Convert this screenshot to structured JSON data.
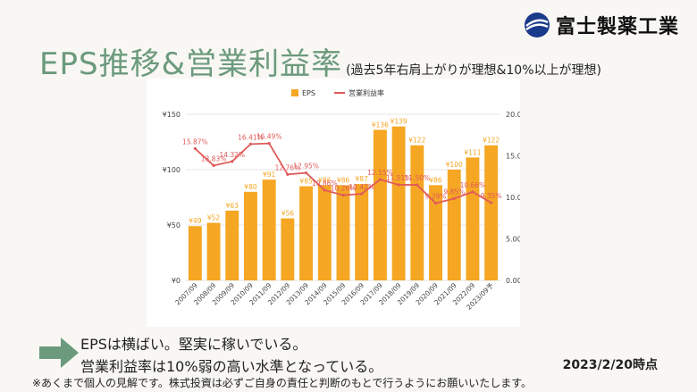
{
  "header": {
    "logo_text": "富士製薬工業",
    "title": "EPS推移&営業利益率",
    "subtitle": "(過去5年右肩上がりが理想&10%以上が理想)"
  },
  "colors": {
    "bar": "#f5a623",
    "line": "#e05a5a",
    "title": "#6b9a7c",
    "arrow": "#6b9a7c"
  },
  "chart_data": {
    "type": "bar",
    "legend_position": "top-center",
    "grid": true,
    "categories": [
      "2007/09",
      "2008/09",
      "2009/09",
      "2010/09",
      "2011/09",
      "2012/09",
      "2013/09",
      "2014/09",
      "2015/09",
      "2016/09",
      "2017/09",
      "2018/09",
      "2019/09",
      "2020/09",
      "2021/09",
      "2022/09",
      "2023/09予"
    ],
    "y_left": {
      "range": [
        0,
        150
      ],
      "ticks": [
        "¥0",
        "¥50",
        "¥100",
        "¥150"
      ],
      "tick_values": [
        0,
        50,
        100,
        150
      ]
    },
    "y_right": {
      "range": [
        0,
        20
      ],
      "ticks": [
        "0.00%",
        "5.00%",
        "10.00%",
        "15.00%",
        "20.00%"
      ],
      "tick_values": [
        0,
        5,
        10,
        15,
        20
      ]
    },
    "series": [
      {
        "name": "EPS",
        "kind": "bar",
        "axis": "left",
        "values": [
          49,
          52,
          63,
          80,
          91,
          56,
          85,
          86,
          86,
          87,
          136,
          139,
          122,
          86,
          100,
          111,
          122
        ],
        "labels": [
          "¥49",
          "¥52",
          "¥63",
          "¥80",
          "¥91",
          "¥56",
          "¥85",
          "¥86",
          "¥86",
          "¥87",
          "¥136",
          "¥139",
          "¥122",
          "¥86",
          "¥100",
          "¥111",
          "¥122"
        ]
      },
      {
        "name": "営業利益率",
        "kind": "line",
        "axis": "right",
        "values": [
          15.87,
          13.83,
          14.32,
          16.41,
          16.49,
          12.76,
          12.95,
          10.86,
          10.26,
          10.42,
          12.15,
          11.51,
          11.5,
          9.29,
          9.85,
          10.66,
          9.35
        ],
        "labels": [
          "15.87%",
          "13.83%",
          "14.32%",
          "16.41%",
          "16.49%",
          "12.76%",
          "12.95%",
          "10.86%",
          "10.26%",
          "10.42%",
          "12.15%",
          "11.51%",
          "11.50%",
          "9.29%",
          "9.85%",
          "10.66%",
          "9.35%"
        ]
      }
    ]
  },
  "notes": {
    "line1": "EPSは横ばい。堅実に稼いでいる。",
    "line2": "営業利益率は10%弱の高い水準となっている。"
  },
  "as_of": "2023/2/20時点",
  "disclaimer": "※あくまで個人の見解です。株式投資は必ずご自身の責任と判断のもとで行うようにお願いいたします。"
}
